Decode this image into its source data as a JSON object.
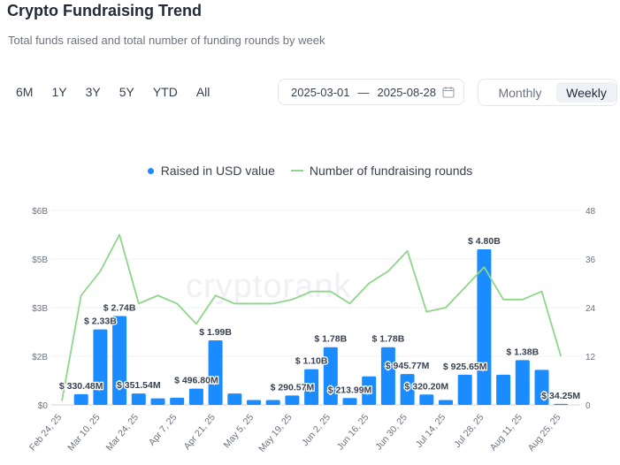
{
  "header": {
    "title": "Crypto Fundraising Trend",
    "subtitle": "Total funds raised and total number of funding rounds by week"
  },
  "ranges": [
    "6M",
    "1Y",
    "3Y",
    "5Y",
    "YTD",
    "All"
  ],
  "date_range": {
    "start": "2025-03-01",
    "separator": "—",
    "end": "2025-08-28"
  },
  "period_toggle": {
    "monthly": "Monthly",
    "weekly": "Weekly",
    "selected": "Weekly"
  },
  "watermark": "cryptorank",
  "icons": {
    "calendar": "calendar-icon"
  },
  "colors": {
    "bar": "#1a8cff",
    "line": "#8fd68a",
    "grid": "#eef0f3"
  },
  "chart_data": {
    "type": "bar",
    "legend": [
      "Raised in USD value",
      "Number of fundraising rounds"
    ],
    "x_tick_labels": [
      "Feb 24, 25",
      "Mar 10, 25",
      "Mar 24, 25",
      "Apr 7, 25",
      "Apr 21, 25",
      "May 5, 25",
      "May 19, 25",
      "Jun 2, 25",
      "Jun 16, 25",
      "Jun 30, 25",
      "Jul 14, 25",
      "Jul 28, 25",
      "Aug 11, 25",
      "Aug 25, 25"
    ],
    "y_left": {
      "ticks": [
        "$0",
        "$2B",
        "$3B",
        "$5B",
        "$6B"
      ],
      "tick_values": [
        0,
        1.5,
        3,
        4.5,
        6
      ],
      "range": [
        0,
        6
      ]
    },
    "y_right": {
      "ticks": [
        "0",
        "12",
        "24",
        "36",
        "48"
      ],
      "tick_values": [
        0,
        12,
        24,
        36,
        48
      ],
      "range": [
        0,
        48
      ]
    },
    "series": [
      {
        "name": "Raised in USD value",
        "type": "bar",
        "values": [
          0.0,
          0.33,
          2.33,
          2.74,
          0.35,
          0.2,
          0.22,
          0.5,
          1.99,
          0.35,
          0.15,
          0.15,
          0.29,
          1.1,
          1.78,
          0.21,
          0.88,
          1.78,
          0.95,
          0.32,
          0.15,
          0.93,
          4.8,
          0.93,
          1.38,
          1.08,
          0.03
        ],
        "data_labels": [
          "",
          "$ 330.48M",
          "$ 2.33B",
          "$ 2.74B",
          "$ 351.54M",
          "",
          "",
          "$ 496.80M",
          "$ 1.99B",
          "",
          "",
          "",
          "$ 290.57M",
          "$ 1.10B",
          "$ 1.78B",
          "$ 213.99M",
          "",
          "$ 1.78B",
          "$ 945.77M",
          "$ 320.20M",
          "",
          "$ 925.65M",
          "$ 4.80B",
          "",
          "$ 1.38B",
          "",
          "$ 34.25M"
        ]
      },
      {
        "name": "Number of fundraising rounds",
        "type": "line",
        "values": [
          1,
          27,
          33,
          42,
          25,
          27,
          25,
          20,
          27,
          25,
          25,
          25,
          26,
          28,
          28,
          25,
          30,
          33,
          38,
          23,
          24,
          29,
          34,
          26,
          26,
          28,
          12
        ]
      }
    ]
  }
}
